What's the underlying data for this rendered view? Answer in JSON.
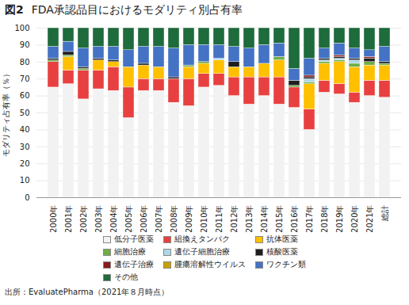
{
  "chart_data": {
    "type": "bar",
    "stacked": true,
    "title": "図2",
    "subtitle": "FDA承認品目におけるモダリティ別占有率",
    "ylabel": "モダリティ占有率（％）",
    "annotations": [
      "出所：EvaluatePharma（2021年８月時点）"
    ],
    "categories": [
      "2000年",
      "2001年",
      "2002年",
      "2003年",
      "2004年",
      "2005年",
      "2006年",
      "2007年",
      "2008年",
      "2009年",
      "2010年",
      "2011年",
      "2012年",
      "2013年",
      "2014年",
      "2015年",
      "2016年",
      "2017年",
      "2018年",
      "2019年",
      "2020年",
      "2021年",
      "総計"
    ],
    "series": [
      {
        "name": "低分子医薬",
        "color": "#f2f2f2",
        "values": [
          65,
          67,
          58,
          64,
          63,
          47,
          63,
          63,
          56,
          54,
          65,
          66,
          60,
          55,
          60,
          55,
          53,
          40,
          62,
          61,
          56,
          60,
          59
        ]
      },
      {
        "name": "組換えタンパク",
        "color": "#e84040",
        "values": [
          15,
          8,
          17,
          11,
          14,
          18,
          7,
          7,
          14,
          16,
          8,
          7,
          11,
          16,
          11,
          16,
          12,
          12,
          7,
          6,
          6,
          9,
          10
        ]
      },
      {
        "name": "抗体医薬",
        "color": "#ffc000",
        "values": [
          0,
          8,
          0,
          6,
          3,
          12,
          8,
          7,
          0,
          7,
          6,
          8,
          6,
          6,
          8,
          10,
          0,
          15,
          10,
          13,
          15,
          9,
          9
        ]
      },
      {
        "name": "細胞治療",
        "color": "#70ad47",
        "values": [
          1,
          1,
          1,
          0,
          0,
          0,
          0,
          0,
          0,
          1,
          1,
          0,
          0,
          0,
          0,
          2,
          1,
          1,
          1,
          1,
          2,
          2,
          1
        ]
      },
      {
        "name": "遺伝子細胞治療",
        "color": "#add8e6",
        "values": [
          0,
          0,
          0,
          0,
          0,
          0,
          0,
          0,
          0,
          0,
          0,
          1,
          0,
          0,
          0,
          0,
          0,
          2,
          1,
          1,
          2,
          0,
          0
        ]
      },
      {
        "name": "核酸医薬",
        "color": "#1f1f1f",
        "values": [
          1,
          2,
          1,
          1,
          1,
          0,
          1,
          0,
          1,
          0,
          0,
          0,
          3,
          0,
          0,
          0,
          3,
          1,
          1,
          1,
          1,
          2,
          1
        ]
      },
      {
        "name": "遺伝子治療",
        "color": "#8b1a1a",
        "values": [
          0,
          0,
          0,
          0,
          0,
          0,
          0,
          0,
          0,
          0,
          0,
          0,
          0,
          0,
          0,
          0,
          0,
          1,
          0,
          1,
          0,
          1,
          0
        ]
      },
      {
        "name": "腫瘍溶解性ウイルス",
        "color": "#c8a000",
        "values": [
          0,
          0,
          0,
          0,
          0,
          0,
          0,
          0,
          0,
          0,
          0,
          0,
          0,
          0,
          0,
          0,
          0,
          0,
          0,
          0,
          0,
          0,
          0
        ]
      },
      {
        "name": "ワクチン類",
        "color": "#4472c4",
        "values": [
          7,
          6,
          11,
          7,
          8,
          10,
          10,
          12,
          17,
          12,
          10,
          8,
          9,
          11,
          11,
          8,
          7,
          10,
          6,
          7,
          6,
          4,
          9
        ]
      },
      {
        "name": "その他",
        "color": "#1e6b3c",
        "values": [
          11,
          8,
          12,
          11,
          11,
          13,
          11,
          11,
          12,
          10,
          10,
          10,
          11,
          12,
          10,
          9,
          24,
          18,
          12,
          9,
          12,
          13,
          11
        ]
      }
    ],
    "ylim": [
      0,
      100
    ],
    "yticks": [
      0,
      10,
      20,
      30,
      40,
      50,
      60,
      70,
      80,
      90,
      100
    ],
    "grid": true,
    "legend": "bottom"
  }
}
